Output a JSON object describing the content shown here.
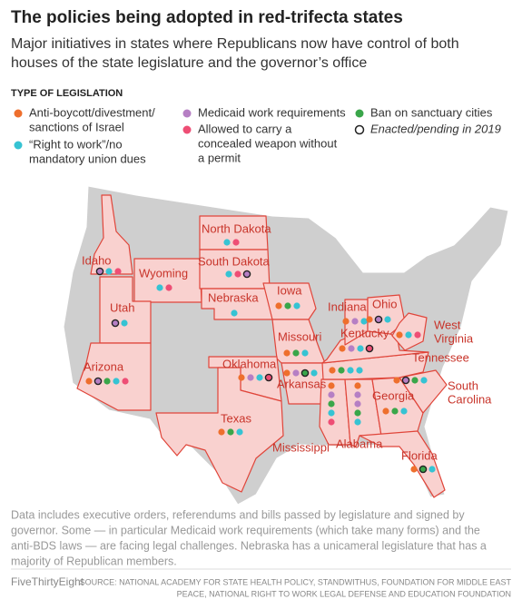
{
  "header": {
    "title": "The policies being adopted in red-trifecta states",
    "subtitle": [
      "Major initiatives in states where Republicans now have control of both",
      "houses of the state legislature and the governor’s office"
    ]
  },
  "legend": {
    "title": "TYPE OF LEGISLATION",
    "items": [
      {
        "label": [
          "Anti-boycott/divestment/",
          "sanctions of Israel"
        ],
        "color": "#ee6f2d"
      },
      {
        "label": [
          "“Right to work”/no",
          "mandatory union dues"
        ],
        "color": "#36c3d3"
      },
      {
        "label": [
          "Medicaid work requirements"
        ],
        "color": "#b67fc4"
      },
      {
        "label": [
          "Allowed to carry a",
          "concealed weapon without",
          "a permit"
        ],
        "color": "#ee4e75"
      },
      {
        "label": [
          "Ban on sanctuary cities"
        ],
        "color": "#3aa64a"
      }
    ],
    "enacted": "Enacted/pending in 2019"
  },
  "states": [
    {
      "name": "Idaho",
      "policies": [
        {
          "color": "#b67fc4",
          "enacted": true
        },
        {
          "color": "#36c3d3",
          "enacted": false
        },
        {
          "color": "#ee4e75",
          "enacted": false
        }
      ]
    },
    {
      "name": "Wyoming",
      "policies": [
        {
          "color": "#36c3d3",
          "enacted": false
        },
        {
          "color": "#ee4e75",
          "enacted": false
        }
      ]
    },
    {
      "name": "North Dakota",
      "policies": [
        {
          "color": "#36c3d3",
          "enacted": false
        },
        {
          "color": "#ee4e75",
          "enacted": false
        }
      ]
    },
    {
      "name": "South Dakota",
      "policies": [
        {
          "color": "#36c3d3",
          "enacted": false
        },
        {
          "color": "#ee4e75",
          "enacted": false
        },
        {
          "color": "#b67fc4",
          "enacted": true
        }
      ]
    },
    {
      "name": "Nebraska",
      "policies": [
        {
          "color": "#36c3d3",
          "enacted": false
        }
      ]
    },
    {
      "name": "Utah",
      "policies": [
        {
          "color": "#b67fc4",
          "enacted": true
        },
        {
          "color": "#36c3d3",
          "enacted": false
        }
      ]
    },
    {
      "name": "Arizona",
      "policies": [
        {
          "color": "#ee6f2d",
          "enacted": false
        },
        {
          "color": "#b67fc4",
          "enacted": true
        },
        {
          "color": "#3aa64a",
          "enacted": false
        },
        {
          "color": "#36c3d3",
          "enacted": false
        },
        {
          "color": "#ee4e75",
          "enacted": false
        }
      ]
    },
    {
      "name": "Iowa",
      "policies": [
        {
          "color": "#ee6f2d",
          "enacted": false
        },
        {
          "color": "#3aa64a",
          "enacted": false
        },
        {
          "color": "#36c3d3",
          "enacted": false
        }
      ]
    },
    {
      "name": "Missouri",
      "policies": [
        {
          "color": "#ee6f2d",
          "enacted": false
        },
        {
          "color": "#3aa64a",
          "enacted": false
        },
        {
          "color": "#36c3d3",
          "enacted": false
        }
      ]
    },
    {
      "name": "Oklahoma",
      "policies": [
        {
          "color": "#ee6f2d",
          "enacted": false
        },
        {
          "color": "#b67fc4",
          "enacted": false
        },
        {
          "color": "#36c3d3",
          "enacted": false
        },
        {
          "color": "#ee4e75",
          "enacted": true
        }
      ]
    },
    {
      "name": "Texas",
      "policies": [
        {
          "color": "#ee6f2d",
          "enacted": false
        },
        {
          "color": "#3aa64a",
          "enacted": false
        },
        {
          "color": "#36c3d3",
          "enacted": false
        }
      ]
    },
    {
      "name": "Arkansas",
      "policies": [
        {
          "color": "#ee6f2d",
          "enacted": false
        },
        {
          "color": "#b67fc4",
          "enacted": false
        },
        {
          "color": "#3aa64a",
          "enacted": true
        },
        {
          "color": "#36c3d3",
          "enacted": false
        }
      ]
    },
    {
      "name": "Mississippi",
      "policies": [
        {
          "color": "#ee6f2d",
          "enacted": false
        },
        {
          "color": "#b67fc4",
          "enacted": false
        },
        {
          "color": "#3aa64a",
          "enacted": false
        },
        {
          "color": "#36c3d3",
          "enacted": false
        },
        {
          "color": "#ee4e75",
          "enacted": false
        }
      ]
    },
    {
      "name": "Alabama",
      "policies": [
        {
          "color": "#ee6f2d",
          "enacted": false
        },
        {
          "color": "#b67fc4",
          "enacted": false
        },
        {
          "color": "#b67fc4",
          "enacted": false
        },
        {
          "color": "#3aa64a",
          "enacted": false
        },
        {
          "color": "#36c3d3",
          "enacted": false
        }
      ]
    },
    {
      "name": "Georgia",
      "policies": [
        {
          "color": "#ee6f2d",
          "enacted": false
        },
        {
          "color": "#3aa64a",
          "enacted": false
        },
        {
          "color": "#36c3d3",
          "enacted": false
        }
      ]
    },
    {
      "name": "Florida",
      "policies": [
        {
          "color": "#ee6f2d",
          "enacted": false
        },
        {
          "color": "#3aa64a",
          "enacted": true
        },
        {
          "color": "#36c3d3",
          "enacted": false
        }
      ]
    },
    {
      "name": [
        "South",
        "Carolina"
      ],
      "policies": [
        {
          "color": "#ee6f2d",
          "enacted": false
        },
        {
          "color": "#b67fc4",
          "enacted": true
        },
        {
          "color": "#3aa64a",
          "enacted": false
        },
        {
          "color": "#36c3d3",
          "enacted": false
        }
      ]
    },
    {
      "name": "Tennessee",
      "policies": [
        {
          "color": "#ee6f2d",
          "enacted": false
        },
        {
          "color": "#3aa64a",
          "enacted": false
        },
        {
          "color": "#36c3d3",
          "enacted": false
        },
        {
          "color": "#36c3d3",
          "enacted": false
        }
      ]
    },
    {
      "name": "Kentucky",
      "policies": [
        {
          "color": "#ee6f2d",
          "enacted": false
        },
        {
          "color": "#b67fc4",
          "enacted": false
        },
        {
          "color": "#36c3d3",
          "enacted": false
        },
        {
          "color": "#ee4e75",
          "enacted": true
        }
      ]
    },
    {
      "name": "Indiana",
      "policies": [
        {
          "color": "#ee6f2d",
          "enacted": false
        },
        {
          "color": "#b67fc4",
          "enacted": false
        },
        {
          "color": "#36c3d3",
          "enacted": false
        }
      ]
    },
    {
      "name": "Ohio",
      "policies": [
        {
          "color": "#ee6f2d",
          "enacted": false
        },
        {
          "color": "#b67fc4",
          "enacted": true
        },
        {
          "color": "#36c3d3",
          "enacted": false
        }
      ]
    },
    {
      "name": [
        "West",
        "Virginia"
      ],
      "policies": [
        {
          "color": "#ee6f2d",
          "enacted": false
        },
        {
          "color": "#36c3d3",
          "enacted": false
        },
        {
          "color": "#ee4e75",
          "enacted": false
        }
      ]
    }
  ],
  "footnote": [
    "Data includes executive orders, referendums and bills passed by legislature and signed by",
    "governor.  Some — in particular Medicaid work requirements (which take many forms) and the",
    "anti-BDS laws — are facing legal challenges. Nebraska has a unicameral legislature that has a",
    "majority of Republican members."
  ],
  "footer": {
    "brand": "FiveThirtyEight",
    "source": [
      "SOURCE: NATIONAL ACADEMY FOR STATE HEALTH POLICY, STANDWITHUS, FOUNDATION FOR MIDDLE EAST",
      "PEACE, NATIONAL RIGHT TO WORK LEGAL DEFENSE AND EDUCATION FOUNDATION"
    ]
  }
}
